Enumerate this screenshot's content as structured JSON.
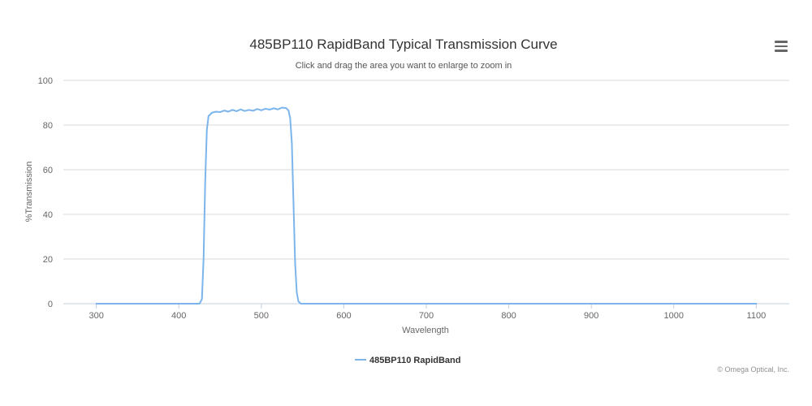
{
  "chart_data": {
    "type": "line",
    "title": "485BP110 RapidBand Typical Transmission Curve",
    "subtitle": "Click and drag the area you want to enlarge to zoom in",
    "xlabel": "Wavelength",
    "ylabel": "%Transmission",
    "xlim": [
      260,
      1140
    ],
    "ylim": [
      0,
      100
    ],
    "x_ticks": [
      300,
      400,
      500,
      600,
      700,
      800,
      900,
      1000,
      1100
    ],
    "y_ticks": [
      0,
      20,
      40,
      60,
      80,
      100
    ],
    "grid": true,
    "legend_position": "bottom-center",
    "series": [
      {
        "name": "485BP110 RapidBand",
        "color": "#7cb5ec",
        "x": [
          300,
          400,
          425,
          428,
          430,
          432,
          434,
          436,
          440,
          445,
          450,
          455,
          460,
          465,
          470,
          475,
          480,
          485,
          490,
          495,
          500,
          505,
          510,
          515,
          520,
          525,
          530,
          533,
          535,
          537,
          539,
          541,
          543,
          545,
          548,
          600,
          700,
          800,
          900,
          1000,
          1100
        ],
        "y": [
          0,
          0,
          0,
          2,
          20,
          55,
          78,
          84,
          85.5,
          86,
          85.8,
          86.5,
          86,
          86.8,
          86.2,
          87,
          86.3,
          86.8,
          86.4,
          87.2,
          86.6,
          87.3,
          86.9,
          87.5,
          87,
          87.8,
          87.6,
          86.5,
          83,
          72,
          45,
          18,
          5,
          1,
          0,
          0,
          0,
          0,
          0,
          0,
          0
        ]
      }
    ]
  },
  "credits": "© Omega Optical, Inc.",
  "colors": {
    "grid": "#d8d8d8",
    "axis": "#c0d0e0",
    "series": "#7cb5ec"
  },
  "icons": {
    "menu": "hamburger-menu-icon"
  }
}
